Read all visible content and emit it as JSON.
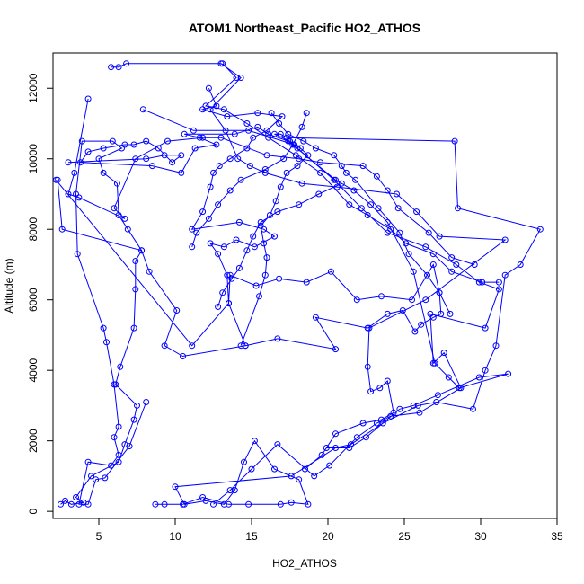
{
  "chart_data": {
    "type": "line",
    "title": "ATOM1 Northeast_Pacific HO2_ATHOS",
    "xlabel": "HO2_ATHOS",
    "ylabel": "Altitude (m)",
    "xlim": [
      2.0,
      35.0
    ],
    "ylim": [
      -200,
      13000
    ],
    "x_ticks": [
      5,
      10,
      15,
      20,
      25,
      30,
      35
    ],
    "y_ticks": [
      0,
      2000,
      4000,
      6000,
      8000,
      10000,
      12000
    ],
    "grid": false,
    "legend": "none",
    "colors": {
      "series": "#0000ff"
    },
    "series": [
      {
        "values": [
          [
            2.5,
            200
          ],
          [
            2.8,
            300
          ],
          [
            3.2,
            200
          ],
          [
            4.0,
            250
          ],
          [
            3.5,
            400
          ],
          [
            4.5,
            1000
          ],
          [
            6.3,
            1400
          ],
          [
            6.7,
            1900
          ],
          [
            7.3,
            2600
          ],
          [
            7.5,
            3000
          ],
          [
            6.1,
            3600
          ],
          [
            6.4,
            4100
          ],
          [
            7.3,
            5200
          ],
          [
            7.4,
            6300
          ],
          [
            7.4,
            7100
          ],
          [
            7.8,
            7400
          ],
          [
            6.9,
            8000
          ],
          [
            6.3,
            8400
          ],
          [
            6.2,
            9300
          ],
          [
            5.3,
            9600
          ],
          [
            5.0,
            10000
          ],
          [
            6.5,
            10300
          ],
          [
            5.9,
            10500
          ],
          [
            3.9,
            10500
          ],
          [
            3.5,
            9000
          ],
          [
            3.6,
            7300
          ],
          [
            5.3,
            5200
          ],
          [
            5.5,
            4800
          ],
          [
            6.0,
            3600
          ],
          [
            6.3,
            2400
          ],
          [
            6.0,
            2100
          ],
          [
            6.3,
            1600
          ],
          [
            5.8,
            1300
          ],
          [
            4.3,
            1400
          ],
          [
            3.7,
            200
          ],
          [
            4.3,
            200
          ],
          [
            4.8,
            900
          ],
          [
            5.4,
            950
          ],
          [
            7.0,
            1850
          ],
          [
            8.1,
            3100
          ]
        ]
      },
      {
        "values": [
          [
            8.7,
            200
          ],
          [
            9.3,
            200
          ],
          [
            10.5,
            200
          ],
          [
            11.8,
            400
          ],
          [
            13.5,
            200
          ],
          [
            14.8,
            200
          ],
          [
            16.9,
            200
          ],
          [
            17.6,
            250
          ],
          [
            18.7,
            200
          ],
          [
            18.1,
            900
          ],
          [
            16.5,
            1200
          ],
          [
            15.2,
            2000
          ],
          [
            14.5,
            1400
          ],
          [
            13.9,
            600
          ],
          [
            13.2,
            200
          ],
          [
            12.0,
            300
          ],
          [
            10.6,
            200
          ],
          [
            10.0,
            700
          ],
          [
            17.6,
            1000
          ],
          [
            20.5,
            1800
          ],
          [
            21.5,
            1900
          ],
          [
            23.6,
            2500
          ],
          [
            25.9,
            3000
          ],
          [
            27.1,
            3100
          ],
          [
            29.5,
            2900
          ],
          [
            30.3,
            4000
          ],
          [
            31.0,
            4700
          ],
          [
            31.6,
            6700
          ],
          [
            32.6,
            7000
          ],
          [
            33.9,
            8000
          ],
          [
            28.5,
            8600
          ],
          [
            28.3,
            10500
          ],
          [
            17.3,
            10600
          ],
          [
            16.9,
            10700
          ],
          [
            16.5,
            10700
          ],
          [
            17.5,
            10500
          ],
          [
            18.0,
            10300
          ],
          [
            20.4,
            9400
          ],
          [
            22.2,
            8600
          ],
          [
            23.9,
            7900
          ],
          [
            26.4,
            7500
          ],
          [
            28.4,
            7000
          ],
          [
            29.9,
            6500
          ],
          [
            31.2,
            6300
          ],
          [
            30.3,
            5200
          ],
          [
            26.7,
            5600
          ],
          [
            26.9,
            4200
          ],
          [
            27.6,
            4500
          ],
          [
            28.7,
            3500
          ],
          [
            26.0,
            2800
          ],
          [
            24.1,
            2700
          ],
          [
            23.2,
            2500
          ],
          [
            21.9,
            2100
          ],
          [
            20.1,
            1300
          ],
          [
            19.1,
            1000
          ],
          [
            16.7,
            1900
          ],
          [
            15.0,
            1200
          ],
          [
            13.6,
            600
          ],
          [
            12.5,
            200
          ]
        ]
      },
      {
        "values": [
          [
            2.3,
            9400
          ],
          [
            2.6,
            8000
          ],
          [
            7.8,
            7400
          ],
          [
            8.3,
            6800
          ],
          [
            10.1,
            5700
          ],
          [
            9.3,
            4700
          ],
          [
            10.5,
            4400
          ],
          [
            14.6,
            4700
          ],
          [
            16.7,
            4900
          ],
          [
            20.5,
            4600
          ],
          [
            19.2,
            5500
          ],
          [
            22.6,
            5200
          ],
          [
            23.9,
            5600
          ],
          [
            24.9,
            5700
          ],
          [
            25.7,
            5100
          ],
          [
            26.1,
            5300
          ],
          [
            26.9,
            5500
          ],
          [
            27.4,
            5600
          ],
          [
            27.3,
            6200
          ],
          [
            26.9,
            7000
          ],
          [
            25.5,
            6000
          ],
          [
            23.5,
            6100
          ],
          [
            21.9,
            6000
          ],
          [
            20.2,
            6800
          ],
          [
            18.6,
            6500
          ],
          [
            16.8,
            6600
          ],
          [
            15.3,
            6400
          ],
          [
            13.6,
            6700
          ],
          [
            13.5,
            5900
          ],
          [
            11.1,
            4700
          ],
          [
            2.2,
            9400
          ]
        ]
      },
      {
        "values": [
          [
            3.0,
            9900
          ],
          [
            8.1,
            10000
          ],
          [
            9.3,
            10100
          ],
          [
            10.4,
            10100
          ],
          [
            9.8,
            9900
          ],
          [
            8.9,
            10300
          ],
          [
            8.1,
            10500
          ],
          [
            7.3,
            10400
          ],
          [
            6.7,
            10400
          ],
          [
            5.3,
            10300
          ],
          [
            4.3,
            10200
          ],
          [
            3.8,
            9900
          ],
          [
            8.5,
            9800
          ],
          [
            10.4,
            9600
          ],
          [
            11.3,
            10300
          ],
          [
            12.7,
            10400
          ],
          [
            11.6,
            10600
          ],
          [
            10.6,
            10700
          ],
          [
            13.9,
            10700
          ],
          [
            15.4,
            10900
          ],
          [
            16.1,
            10700
          ],
          [
            17.4,
            10500
          ],
          [
            20.5,
            9400
          ],
          [
            21.7,
            9100
          ],
          [
            22.8,
            8700
          ],
          [
            23.9,
            8200
          ],
          [
            25.6,
            6800
          ],
          [
            27.0,
            4200
          ],
          [
            27.9,
            3800
          ],
          [
            28.6,
            3500
          ],
          [
            31.8,
            3900
          ],
          [
            29.9,
            3800
          ],
          [
            27.2,
            3300
          ],
          [
            25.6,
            3000
          ],
          [
            24.7,
            2900
          ],
          [
            22.5,
            2100
          ],
          [
            21.4,
            1800
          ],
          [
            19.9,
            1800
          ]
        ]
      },
      {
        "values": [
          [
            5.8,
            12600
          ],
          [
            6.3,
            12600
          ],
          [
            6.8,
            12700
          ],
          [
            13.0,
            12700
          ],
          [
            14.3,
            12300
          ],
          [
            12.3,
            11400
          ],
          [
            13.3,
            10800
          ],
          [
            14.1,
            10000
          ],
          [
            14.9,
            9800
          ],
          [
            15.9,
            9600
          ],
          [
            18.3,
            9300
          ],
          [
            20.6,
            9200
          ],
          [
            24.5,
            9000
          ],
          [
            25.8,
            8500
          ],
          [
            27.3,
            7800
          ],
          [
            31.6,
            7700
          ],
          [
            26.4,
            6000
          ],
          [
            22.7,
            5200
          ],
          [
            22.6,
            4100
          ],
          [
            22.8,
            3400
          ],
          [
            23.4,
            3500
          ],
          [
            23.9,
            3700
          ],
          [
            24.3,
            2800
          ],
          [
            23.5,
            2600
          ],
          [
            22.3,
            2500
          ],
          [
            20.5,
            2200
          ],
          [
            19.6,
            1600
          ],
          [
            18.5,
            1200
          ]
        ]
      },
      {
        "values": [
          [
            12.2,
            12000
          ],
          [
            12.7,
            11500
          ],
          [
            11.8,
            11400
          ],
          [
            13.4,
            11200
          ],
          [
            15.4,
            11300
          ],
          [
            17.0,
            11200
          ],
          [
            16.0,
            10800
          ],
          [
            15.1,
            10600
          ],
          [
            14.7,
            10300
          ],
          [
            13.6,
            10000
          ],
          [
            12.9,
            9800
          ],
          [
            12.5,
            9600
          ],
          [
            12.3,
            9200
          ],
          [
            11.8,
            8500
          ],
          [
            11.1,
            8000
          ],
          [
            14.2,
            8200
          ],
          [
            15.8,
            8000
          ],
          [
            16.5,
            7800
          ],
          [
            15.2,
            7500
          ],
          [
            14.0,
            7700
          ],
          [
            13.2,
            7500
          ],
          [
            12.3,
            7600
          ],
          [
            12.8,
            7300
          ],
          [
            13.4,
            6700
          ],
          [
            13.5,
            5900
          ],
          [
            14.6,
            4700
          ]
        ]
      },
      {
        "values": [
          [
            7.9,
            11400
          ],
          [
            11.2,
            10800
          ],
          [
            14.8,
            10800
          ],
          [
            17.8,
            10400
          ],
          [
            18.2,
            10300
          ],
          [
            18.7,
            10100
          ],
          [
            18.0,
            9800
          ],
          [
            17.3,
            9600
          ],
          [
            16.9,
            9200
          ],
          [
            16.6,
            8800
          ],
          [
            16.2,
            8400
          ],
          [
            15.6,
            8100
          ],
          [
            15.8,
            7600
          ],
          [
            16.0,
            7200
          ],
          [
            15.9,
            6700
          ],
          [
            15.5,
            6100
          ],
          [
            14.3,
            4700
          ]
        ]
      },
      {
        "values": [
          [
            4.3,
            11700
          ],
          [
            3.4,
            9600
          ],
          [
            3.0,
            9000
          ],
          [
            3.7,
            8900
          ],
          [
            6.7,
            8300
          ],
          [
            6.0,
            8600
          ],
          [
            7.4,
            10000
          ],
          [
            9.5,
            10500
          ],
          [
            11.8,
            10600
          ],
          [
            13.0,
            10600
          ],
          [
            16.0,
            10100
          ],
          [
            18.1,
            10000
          ],
          [
            19.5,
            9900
          ],
          [
            22.3,
            9800
          ],
          [
            23.2,
            9500
          ],
          [
            23.9,
            9100
          ],
          [
            24.6,
            8600
          ],
          [
            26.6,
            7900
          ],
          [
            28.1,
            7200
          ],
          [
            29.6,
            7000
          ]
        ]
      },
      {
        "values": [
          [
            13.1,
            12700
          ],
          [
            14.0,
            12300
          ],
          [
            12.0,
            11500
          ],
          [
            13.2,
            11400
          ],
          [
            14.7,
            11000
          ],
          [
            16.1,
            10600
          ],
          [
            17.9,
            10100
          ],
          [
            19.5,
            9600
          ],
          [
            21.4,
            8700
          ],
          [
            22.6,
            8400
          ],
          [
            24.1,
            8000
          ],
          [
            25.1,
            7600
          ],
          [
            26.9,
            7300
          ],
          [
            28.1,
            6800
          ],
          [
            30.1,
            6500
          ],
          [
            31.2,
            6500
          ]
        ]
      },
      {
        "values": [
          [
            16.3,
            11300
          ],
          [
            16.8,
            11000
          ],
          [
            17.4,
            10700
          ],
          [
            18.4,
            10500
          ],
          [
            19.2,
            10300
          ],
          [
            20.4,
            10100
          ],
          [
            20.9,
            9800
          ],
          [
            21.2,
            9600
          ],
          [
            21.8,
            9400
          ],
          [
            23.3,
            8600
          ],
          [
            24.7,
            7900
          ],
          [
            25.3,
            7300
          ],
          [
            26.5,
            6700
          ],
          [
            27.3,
            6200
          ],
          [
            28.0,
            5600
          ]
        ]
      },
      {
        "values": [
          [
            18.6,
            11300
          ],
          [
            18.3,
            10900
          ],
          [
            17.7,
            10400
          ],
          [
            17.1,
            10000
          ],
          [
            15.9,
            9700
          ],
          [
            14.3,
            9400
          ],
          [
            13.6,
            9100
          ],
          [
            12.8,
            8700
          ],
          [
            12.2,
            8300
          ],
          [
            11.4,
            7900
          ],
          [
            11.1,
            7500
          ]
        ]
      },
      {
        "values": [
          [
            20.9,
            9300
          ],
          [
            19.4,
            9000
          ],
          [
            18.1,
            8700
          ],
          [
            16.7,
            8500
          ],
          [
            15.6,
            8200
          ],
          [
            15.1,
            7800
          ],
          [
            14.7,
            7400
          ],
          [
            14.2,
            6900
          ],
          [
            13.7,
            6600
          ],
          [
            13.1,
            6200
          ],
          [
            12.8,
            5800
          ]
        ]
      }
    ]
  }
}
